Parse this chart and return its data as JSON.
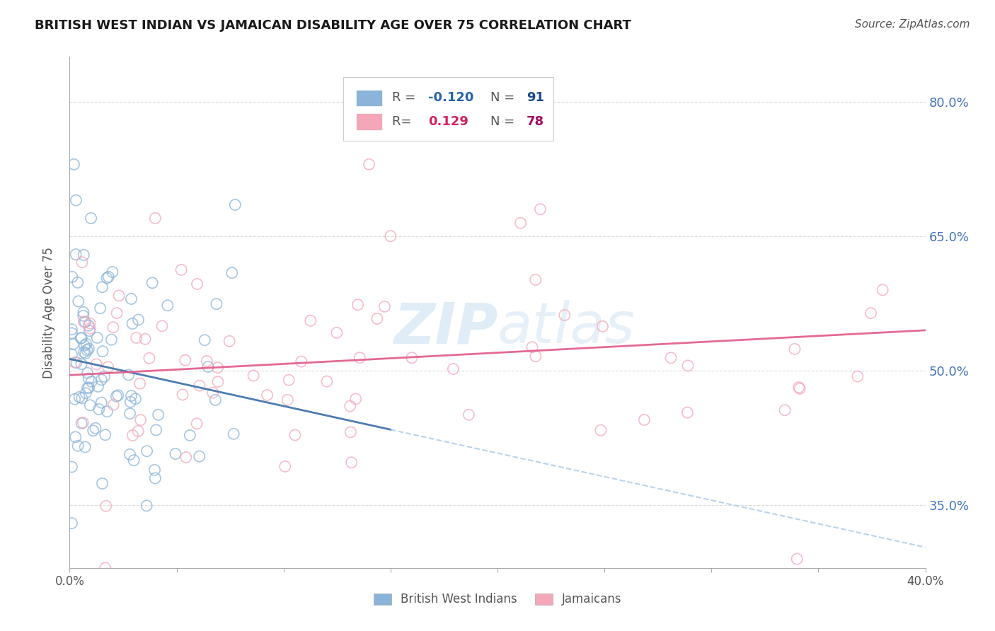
{
  "title": "BRITISH WEST INDIAN VS JAMAICAN DISABILITY AGE OVER 75 CORRELATION CHART",
  "source": "Source: ZipAtlas.com",
  "ylabel": "Disability Age Over 75",
  "xlim": [
    0.0,
    0.4
  ],
  "ylim": [
    0.28,
    0.85
  ],
  "xtick_positions": [
    0.0,
    0.05,
    0.1,
    0.15,
    0.2,
    0.25,
    0.3,
    0.35,
    0.4
  ],
  "yticks_right": [
    0.35,
    0.5,
    0.65,
    0.8
  ],
  "ytick_right_labels": [
    "35.0%",
    "50.0%",
    "65.0%",
    "80.0%"
  ],
  "color_blue": "#8ab4d9",
  "color_pink": "#f4a7b9",
  "color_blue_line": "#3a6ea8",
  "color_blue_dashed": "#a8c8e8",
  "color_pink_line": "#e05a8a",
  "color_r_blue": "#2563a8",
  "color_r_pink": "#d42060",
  "color_n_blue": "#1a4a8a",
  "color_n_pink": "#a01060",
  "watermark_color": "#c8dff0",
  "background_color": "#ffffff",
  "grid_color": "#cccccc",
  "right_axis_color": "#4472c4"
}
